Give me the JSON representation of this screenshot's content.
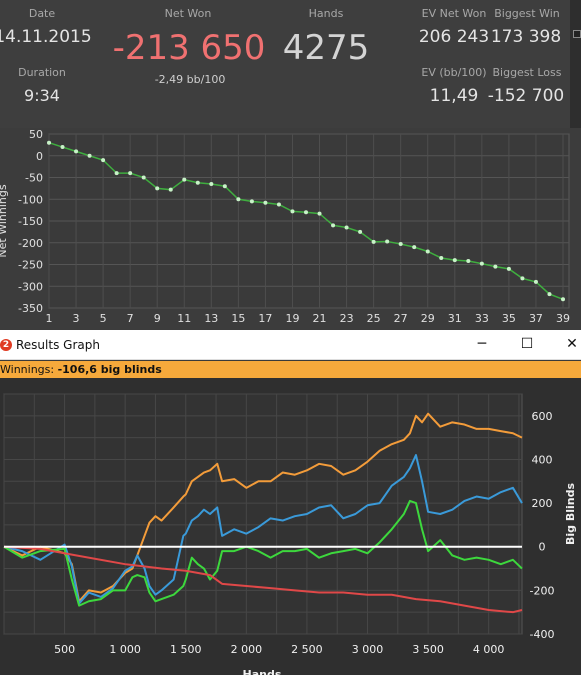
{
  "stats": {
    "date": {
      "label": "Date",
      "value": "14.11.2015"
    },
    "duration": {
      "label": "Duration",
      "value": "9:34"
    },
    "net_won": {
      "label": "Net Won",
      "value": "-213 650",
      "sub": "-2,49 bb/100",
      "color": "#f07171"
    },
    "hands": {
      "label": "Hands",
      "value": "4275"
    },
    "ev_net_won": {
      "label": "EV Net Won",
      "value": "206 243"
    },
    "biggest_win": {
      "label": "Biggest Win",
      "value": "173 398"
    },
    "ev_bb100": {
      "label": "EV (bb/100)",
      "value": "11,49"
    },
    "biggest_loss": {
      "label": "Biggest Loss",
      "value": "-152 700"
    }
  },
  "window": {
    "title": "Results Graph",
    "app_icon": "2",
    "minimize": "─",
    "maximize": "☐",
    "close": "✕"
  },
  "status": {
    "prefix": "Winnings: ",
    "value": "-106,6 big blinds"
  },
  "chart_data": [
    {
      "type": "line",
      "ylabel": "Net Winnings",
      "xlabel": "",
      "ylim": [
        -350,
        50
      ],
      "yticks": [
        50,
        0,
        -50,
        -100,
        -150,
        -200,
        -250,
        -300,
        -350
      ],
      "xticks": [
        1,
        3,
        5,
        7,
        9,
        11,
        13,
        15,
        17,
        19,
        21,
        23,
        25,
        27,
        29,
        31,
        33,
        35,
        37,
        39
      ],
      "grid": true,
      "colors": {
        "line": "#3fae3f",
        "points": "#c8f2c8"
      },
      "series": [
        {
          "x": [
            1,
            2,
            3,
            4,
            5,
            6,
            7,
            8,
            9,
            10,
            11,
            12,
            13,
            14,
            15,
            16,
            17,
            18,
            19,
            20,
            21,
            22,
            23,
            24,
            25,
            26,
            27,
            28,
            29,
            30,
            31,
            32,
            33,
            34,
            35,
            36,
            37,
            38,
            39
          ],
          "values": [
            30,
            20,
            10,
            0,
            -10,
            -40,
            -40,
            -50,
            -75,
            -78,
            -55,
            -62,
            -65,
            -70,
            -100,
            -105,
            -108,
            -112,
            -128,
            -130,
            -133,
            -160,
            -165,
            -175,
            -198,
            -197,
            -203,
            -210,
            -220,
            -235,
            -240,
            -242,
            -248,
            -255,
            -260,
            -282,
            -290,
            -318,
            -330
          ]
        }
      ]
    },
    {
      "type": "line",
      "xlabel": "Hands",
      "ylabel": "Big Blinds",
      "xlim": [
        0,
        4275
      ],
      "ylim": [
        -400,
        700
      ],
      "xticks": [
        500,
        1000,
        1500,
        2000,
        2500,
        3000,
        3500,
        4000
      ],
      "xtick_labels": [
        "500",
        "1 000",
        "1 500",
        "2 000",
        "2 500",
        "3 000",
        "3 500",
        "4 000"
      ],
      "yticks": [
        600,
        400,
        200,
        0,
        -200,
        -400
      ],
      "grid": true,
      "colors": {
        "zero_line": "#ffffff"
      },
      "series": [
        {
          "color": "#f39c3a",
          "x": [
            0,
            150,
            300,
            500,
            560,
            620,
            700,
            800,
            900,
            1000,
            1060,
            1100,
            1160,
            1200,
            1250,
            1300,
            1400,
            1480,
            1500,
            1550,
            1600,
            1650,
            1700,
            1760,
            1800,
            1900,
            2000,
            2100,
            2200,
            2300,
            2400,
            2500,
            2600,
            2700,
            2800,
            2900,
            3000,
            3100,
            3200,
            3300,
            3350,
            3400,
            3450,
            3500,
            3600,
            3700,
            3800,
            3900,
            4000,
            4100,
            4200,
            4275
          ],
          "values": [
            0,
            -40,
            0,
            -30,
            -80,
            -250,
            -200,
            -210,
            -180,
            -120,
            -100,
            -40,
            50,
            110,
            140,
            120,
            180,
            230,
            240,
            300,
            320,
            340,
            350,
            380,
            300,
            310,
            270,
            300,
            300,
            340,
            330,
            350,
            380,
            370,
            330,
            350,
            390,
            440,
            470,
            490,
            520,
            600,
            570,
            610,
            550,
            570,
            560,
            540,
            540,
            530,
            520,
            500
          ]
        },
        {
          "color": "#3a9ad9",
          "x": [
            0,
            150,
            300,
            500,
            560,
            620,
            700,
            800,
            900,
            1000,
            1060,
            1100,
            1160,
            1200,
            1250,
            1300,
            1400,
            1480,
            1500,
            1550,
            1600,
            1650,
            1700,
            1760,
            1800,
            1900,
            2000,
            2100,
            2200,
            2300,
            2400,
            2500,
            2600,
            2700,
            2800,
            2900,
            3000,
            3100,
            3200,
            3300,
            3350,
            3400,
            3450,
            3500,
            3600,
            3700,
            3800,
            3900,
            4000,
            4100,
            4200,
            4275
          ],
          "values": [
            0,
            -20,
            -60,
            10,
            -90,
            -260,
            -210,
            -230,
            -190,
            -110,
            -90,
            -40,
            -100,
            -180,
            -220,
            -200,
            -150,
            50,
            60,
            120,
            140,
            170,
            150,
            180,
            50,
            80,
            60,
            90,
            130,
            120,
            140,
            150,
            180,
            190,
            130,
            150,
            190,
            200,
            280,
            320,
            360,
            420,
            300,
            160,
            150,
            170,
            210,
            230,
            220,
            250,
            270,
            200
          ]
        },
        {
          "color": "#3dd83d",
          "x": [
            0,
            150,
            300,
            500,
            560,
            620,
            700,
            800,
            900,
            1000,
            1060,
            1100,
            1160,
            1200,
            1250,
            1300,
            1400,
            1480,
            1500,
            1550,
            1600,
            1650,
            1700,
            1760,
            1800,
            1900,
            2000,
            2100,
            2200,
            2300,
            2400,
            2500,
            2600,
            2700,
            2800,
            2900,
            3000,
            3100,
            3200,
            3300,
            3350,
            3400,
            3450,
            3500,
            3600,
            3700,
            3800,
            3900,
            4000,
            4100,
            4200,
            4275
          ],
          "values": [
            0,
            -50,
            -20,
            -10,
            -150,
            -270,
            -250,
            -240,
            -200,
            -200,
            -140,
            -130,
            -140,
            -210,
            -250,
            -240,
            -220,
            -180,
            -150,
            -50,
            -80,
            -100,
            -150,
            -110,
            -20,
            -20,
            0,
            -20,
            -50,
            -20,
            -20,
            -10,
            -50,
            -30,
            -20,
            -10,
            -30,
            20,
            80,
            150,
            210,
            200,
            80,
            -20,
            30,
            -40,
            -60,
            -50,
            -60,
            -80,
            -60,
            -100
          ]
        },
        {
          "color": "#e04848",
          "x": [
            0,
            300,
            600,
            1000,
            1300,
            1500,
            1700,
            1800,
            2000,
            2200,
            2400,
            2600,
            2800,
            3000,
            3200,
            3400,
            3600,
            3800,
            4000,
            4200,
            4275
          ],
          "values": [
            0,
            -10,
            -40,
            -80,
            -100,
            -110,
            -130,
            -170,
            -180,
            -190,
            -200,
            -210,
            -210,
            -220,
            -220,
            -240,
            -250,
            -270,
            -290,
            -300,
            -290
          ]
        }
      ]
    }
  ]
}
